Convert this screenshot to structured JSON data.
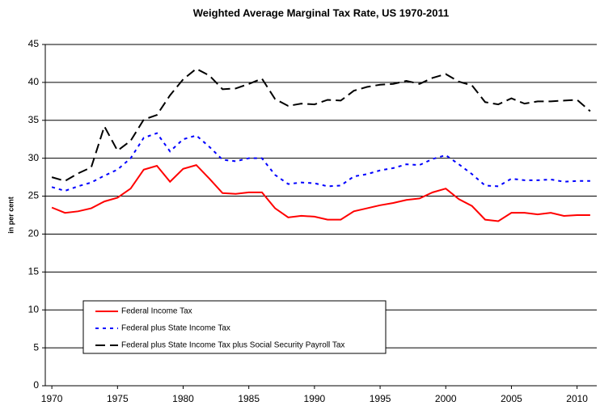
{
  "chart_data": {
    "type": "line",
    "title": "Weighted Average Marginal Tax Rate, US 1970-2011",
    "y_label": "in per cent",
    "x": [
      1970,
      1971,
      1972,
      1973,
      1974,
      1975,
      1976,
      1977,
      1978,
      1979,
      1980,
      1981,
      1982,
      1983,
      1984,
      1985,
      1986,
      1987,
      1988,
      1989,
      1990,
      1991,
      1992,
      1993,
      1994,
      1995,
      1996,
      1997,
      1998,
      1999,
      2000,
      2001,
      2002,
      2003,
      2004,
      2005,
      2006,
      2007,
      2008,
      2009,
      2010,
      2011
    ],
    "xlim": [
      1969.5,
      2011.5
    ],
    "xticks": [
      1970,
      1975,
      1980,
      1985,
      1990,
      1995,
      2000,
      2005,
      2010
    ],
    "ylim": [
      0,
      45
    ],
    "yticks": [
      0,
      5,
      10,
      15,
      20,
      25,
      30,
      35,
      40,
      45
    ],
    "grid": true,
    "series": [
      {
        "name": "Federal Income Tax",
        "color": "#ff0000",
        "dash": "solid",
        "values": [
          23.5,
          22.8,
          23.0,
          23.4,
          24.3,
          24.8,
          26.0,
          28.5,
          29.0,
          26.9,
          28.6,
          29.1,
          27.3,
          25.4,
          25.3,
          25.5,
          25.5,
          23.4,
          22.2,
          22.4,
          22.3,
          21.9,
          21.9,
          23.0,
          23.4,
          23.8,
          24.1,
          24.5,
          24.7,
          25.5,
          26.0,
          24.6,
          23.7,
          21.9,
          21.7,
          22.8,
          22.8,
          22.6,
          22.8,
          22.4,
          22.5,
          22.5
        ]
      },
      {
        "name": "Federal plus State Income Tax",
        "color": "#0000ff",
        "dash": "dotted",
        "values": [
          26.2,
          25.7,
          26.3,
          26.8,
          27.7,
          28.5,
          30.0,
          32.7,
          33.3,
          30.9,
          32.5,
          33.0,
          31.5,
          29.8,
          29.6,
          30.0,
          30.0,
          27.8,
          26.6,
          26.8,
          26.7,
          26.3,
          26.4,
          27.6,
          27.9,
          28.4,
          28.7,
          29.2,
          29.1,
          29.9,
          30.4,
          29.2,
          27.9,
          26.4,
          26.3,
          27.3,
          27.1,
          27.1,
          27.2,
          26.9,
          27.0,
          27.0
        ]
      },
      {
        "name": "Federal plus State Income Tax plus Social Security Payroll Tax",
        "color": "#000000",
        "dash": "dashed",
        "values": [
          27.5,
          27.0,
          28.0,
          28.8,
          34.2,
          31.0,
          32.3,
          35.1,
          35.7,
          38.3,
          40.4,
          41.8,
          40.9,
          39.1,
          39.2,
          39.8,
          40.5,
          37.8,
          36.9,
          37.2,
          37.1,
          37.7,
          37.6,
          38.9,
          39.4,
          39.7,
          39.8,
          40.2,
          39.8,
          40.6,
          41.1,
          40.1,
          39.6,
          37.4,
          37.1,
          37.9,
          37.2,
          37.5,
          37.5,
          37.6,
          37.7,
          36.2
        ]
      }
    ]
  }
}
